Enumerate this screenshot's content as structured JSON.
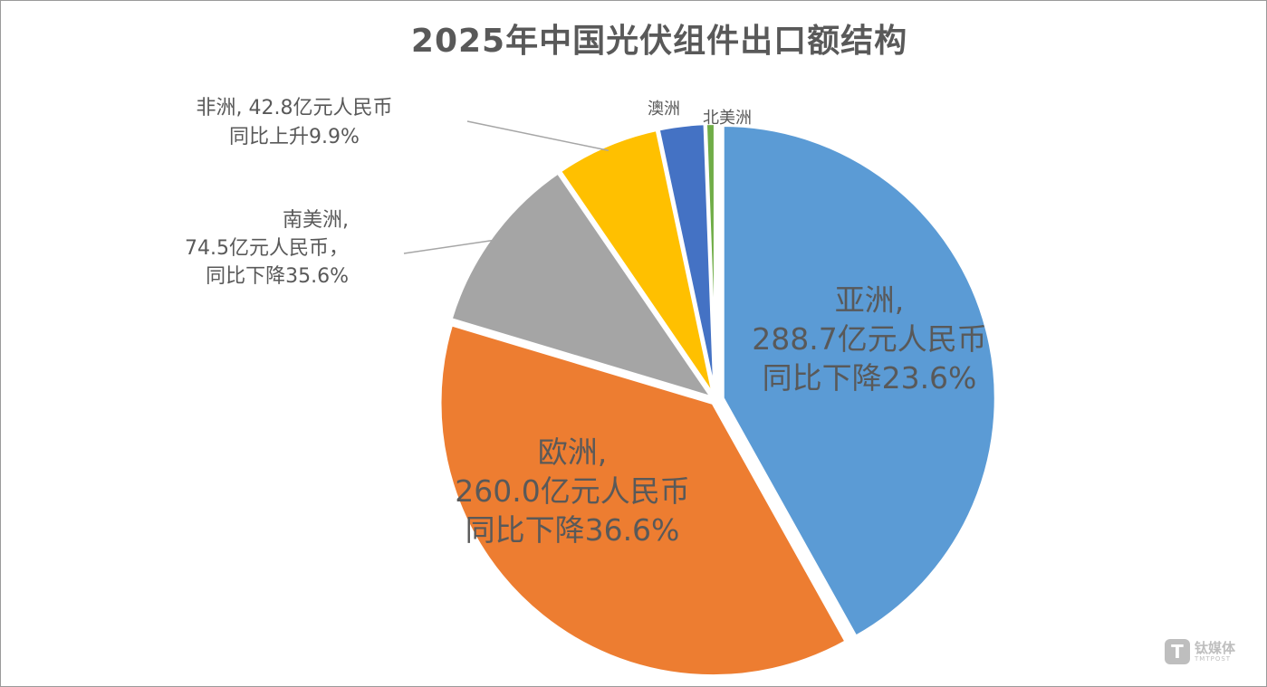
{
  "chart_data": {
    "type": "pie",
    "title": "2025年中国光伏组件出口额结构",
    "unit": "亿元人民币",
    "slices": [
      {
        "name": "亚洲",
        "value": 288.7,
        "color": "#5b9bd5",
        "label_lines": [
          "亚洲,",
          "288.7亿元人民币",
          "同比下降23.6%"
        ]
      },
      {
        "name": "欧洲",
        "value": 260.0,
        "color": "#ed7d31",
        "label_lines": [
          "欧洲,",
          "260.0亿元人民币",
          "同比下降36.6%"
        ]
      },
      {
        "name": "南美洲",
        "value": 74.5,
        "color": "#a5a5a5",
        "label_lines": [
          "南美洲,",
          "74.5亿元人民币，",
          "同比下降35.6%"
        ]
      },
      {
        "name": "非洲",
        "value": 42.8,
        "color": "#ffc000",
        "label_lines": [
          "非洲, 42.8亿元人民币",
          "同比上升9.9%"
        ]
      },
      {
        "name": "澳洲",
        "value": 19,
        "color": "#4472c4",
        "label_lines": [
          "澳洲"
        ]
      },
      {
        "name": "北美洲",
        "value": 4,
        "color": "#70ad47",
        "label_lines": [
          "北美洲"
        ]
      }
    ]
  },
  "watermark": {
    "icon": "T",
    "name_cn": "钛媒体",
    "name_en": "TMTPOST"
  }
}
